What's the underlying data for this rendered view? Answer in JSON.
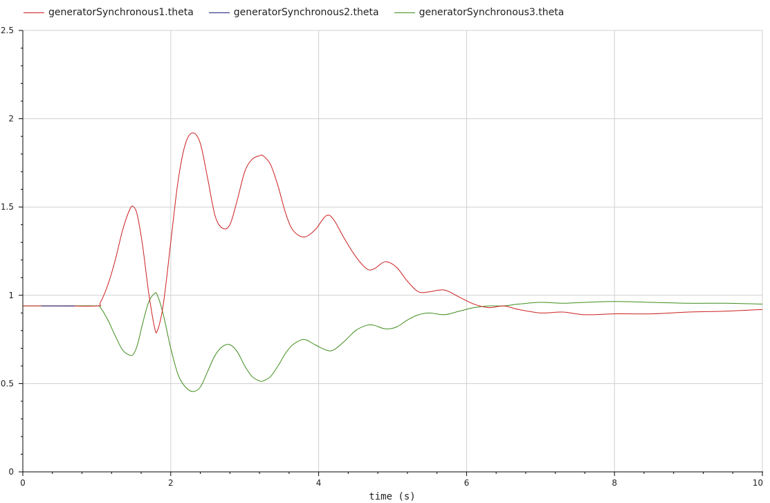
{
  "chart_data": {
    "type": "line",
    "title": "",
    "xlabel": "time (s)",
    "ylabel": "",
    "xlim": [
      0,
      10
    ],
    "ylim": [
      0,
      2.5
    ],
    "xticks": [
      0,
      2,
      4,
      6,
      8,
      10
    ],
    "yticks": [
      0,
      0.5,
      1,
      1.5,
      2,
      2.5
    ],
    "xtick_labels": [
      "0",
      "2",
      "4",
      "6",
      "8",
      "10"
    ],
    "ytick_labels": [
      "0",
      "0.5",
      "1",
      "1.5",
      "2",
      "2.5"
    ],
    "grid": true,
    "legend_position": "top-left",
    "series": [
      {
        "name": "generatorSynchronous1.theta",
        "color": "#cc1c1c",
        "x": [
          0,
          0.5,
          1.0,
          1.05,
          1.15,
          1.25,
          1.35,
          1.45,
          1.5,
          1.55,
          1.62,
          1.7,
          1.78,
          1.82,
          1.9,
          2.0,
          2.1,
          2.2,
          2.3,
          2.4,
          2.5,
          2.6,
          2.7,
          2.8,
          2.9,
          3.0,
          3.1,
          3.2,
          3.25,
          3.35,
          3.45,
          3.55,
          3.65,
          3.8,
          3.95,
          4.1,
          4.2,
          4.35,
          4.5,
          4.65,
          4.75,
          4.9,
          5.05,
          5.2,
          5.35,
          5.5,
          5.7,
          5.9,
          6.1,
          6.3,
          6.5,
          6.7,
          7.0,
          7.3,
          7.6,
          8.0,
          8.5,
          9.0,
          9.5,
          10.0
        ],
        "values": [
          0.94,
          0.94,
          0.94,
          0.96,
          1.06,
          1.2,
          1.37,
          1.49,
          1.5,
          1.45,
          1.28,
          1.02,
          0.82,
          0.8,
          0.95,
          1.3,
          1.65,
          1.86,
          1.92,
          1.86,
          1.66,
          1.45,
          1.38,
          1.4,
          1.54,
          1.7,
          1.77,
          1.79,
          1.79,
          1.74,
          1.62,
          1.47,
          1.37,
          1.33,
          1.37,
          1.45,
          1.43,
          1.32,
          1.22,
          1.15,
          1.15,
          1.19,
          1.16,
          1.08,
          1.02,
          1.02,
          1.03,
          0.99,
          0.95,
          0.93,
          0.94,
          0.92,
          0.9,
          0.905,
          0.89,
          0.895,
          0.895,
          0.905,
          0.91,
          0.92
        ]
      },
      {
        "name": "generatorSynchronous2.theta",
        "color": "#1f1f7a",
        "x": [
          0.25,
          0.5,
          0.7
        ],
        "values": [
          0.94,
          0.94,
          0.94
        ]
      },
      {
        "name": "generatorSynchronous3.theta",
        "color": "#3d8c1a",
        "x": [
          0,
          0.5,
          1.0,
          1.05,
          1.15,
          1.25,
          1.35,
          1.45,
          1.5,
          1.55,
          1.62,
          1.7,
          1.78,
          1.82,
          1.9,
          2.0,
          2.1,
          2.2,
          2.3,
          2.4,
          2.5,
          2.6,
          2.7,
          2.8,
          2.9,
          3.0,
          3.1,
          3.2,
          3.25,
          3.35,
          3.45,
          3.55,
          3.65,
          3.8,
          3.95,
          4.1,
          4.2,
          4.35,
          4.5,
          4.65,
          4.75,
          4.9,
          5.05,
          5.2,
          5.35,
          5.5,
          5.7,
          5.9,
          6.1,
          6.3,
          6.5,
          6.7,
          7.0,
          7.3,
          7.6,
          8.0,
          8.5,
          9.0,
          9.5,
          10.0
        ],
        "values": [
          0.94,
          0.94,
          0.94,
          0.93,
          0.86,
          0.77,
          0.69,
          0.66,
          0.67,
          0.72,
          0.84,
          0.96,
          1.01,
          1.0,
          0.89,
          0.7,
          0.55,
          0.48,
          0.455,
          0.48,
          0.57,
          0.66,
          0.71,
          0.72,
          0.68,
          0.6,
          0.54,
          0.515,
          0.515,
          0.54,
          0.6,
          0.67,
          0.72,
          0.75,
          0.72,
          0.69,
          0.69,
          0.74,
          0.8,
          0.83,
          0.83,
          0.81,
          0.82,
          0.86,
          0.89,
          0.9,
          0.89,
          0.91,
          0.93,
          0.94,
          0.94,
          0.95,
          0.96,
          0.955,
          0.96,
          0.965,
          0.96,
          0.955,
          0.955,
          0.95
        ]
      }
    ]
  }
}
